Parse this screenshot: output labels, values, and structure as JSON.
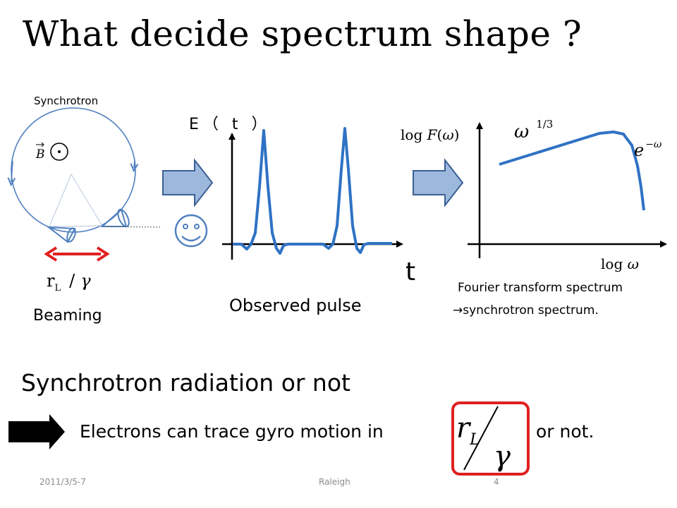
{
  "slide": {
    "title": "What decide spectrum shape ?",
    "colors": {
      "curve": "#2f72c4",
      "orbit": "#4f7fc0",
      "arrow_fill": "#9db8dd",
      "arrow_stroke": "#3a5f94",
      "beam_arrow": "#e02020",
      "box": "#e02020"
    }
  },
  "beaming_panel": {
    "synchrotron_label": "Synchrotron",
    "field_symbol": "B",
    "width_formula": {
      "r": "r",
      "sub": "L",
      "slash": "/",
      "gamma": "γ"
    },
    "beaming_label": "Beaming",
    "icon": "smiley-face-icon"
  },
  "pulse_panel": {
    "y_label": "E（ t ）",
    "x_label": "t",
    "caption": "Observed pulse"
  },
  "spectrum_panel": {
    "y_label": "log F(ω)",
    "x_label": "log ω",
    "low_freq_label": "ω",
    "low_freq_exponent": "1/3",
    "high_freq_label": "e",
    "high_freq_exponent": "−ω",
    "caption_line1": "Fourier transform spectrum",
    "caption_line2": "→synchrotron spectrum."
  },
  "bottom": {
    "section_title": "Synchrotron radiation or not",
    "statement": "Electrons can trace gyro motion in",
    "statement_end": "or not.",
    "boxed_formula": {
      "r": "r",
      "sub": "L",
      "gamma": "γ"
    }
  },
  "footer": {
    "date": "2011/3/5-7",
    "center": "Raleigh",
    "page": "4"
  }
}
